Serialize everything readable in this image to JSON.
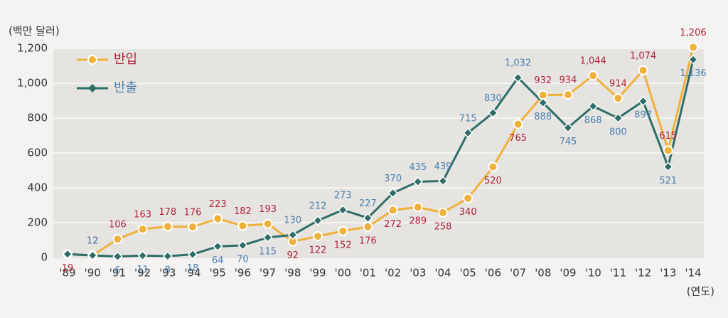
{
  "chart_data": {
    "type": "line",
    "y_axis_label": "(백만 달러)",
    "x_axis_label": "(연도)",
    "categories": [
      "'89",
      "'90",
      "'91",
      "'92",
      "'93",
      "'94",
      "'95",
      "'96",
      "'97",
      "'98",
      "'99",
      "'00",
      "'01",
      "'02",
      "'03",
      "'04",
      "'05",
      "'06",
      "'07",
      "'08",
      "'09",
      "'10",
      "'11",
      "'12",
      "'13",
      "'14"
    ],
    "series": [
      {
        "name": "반입",
        "color": "#f0b13c",
        "label_color": "#b0233c",
        "marker": "circle",
        "values": [
          19,
          12,
          106,
          163,
          178,
          176,
          223,
          182,
          193,
          92,
          122,
          152,
          176,
          272,
          289,
          258,
          340,
          520,
          765,
          932,
          934,
          1044,
          914,
          1074,
          615,
          1206
        ],
        "value_labels": [
          "19",
          "12",
          "106",
          "163",
          "178",
          "176",
          "223",
          "182",
          "193",
          "92",
          "122",
          "152",
          "176",
          "272",
          "289",
          "258",
          "340",
          "520",
          "765",
          "932",
          "934",
          "1,044",
          "914",
          "1,074",
          "615",
          "1,206"
        ]
      },
      {
        "name": "반출",
        "color": "#2e6e68",
        "label_color": "#4a7fb0",
        "marker": "diamond",
        "values": [
          20,
          12,
          6,
          11,
          8,
          18,
          64,
          70,
          115,
          130,
          212,
          273,
          227,
          370,
          435,
          439,
          715,
          830,
          1032,
          888,
          745,
          868,
          800,
          897,
          521,
          1136
        ],
        "value_labels": [
          null,
          "12",
          "6",
          "11",
          "8",
          "18",
          "64",
          "70",
          "115",
          "130",
          "212",
          "273",
          "227",
          "370",
          "435",
          "439",
          "715",
          "830",
          "1,032",
          "888",
          "745",
          "868",
          "800",
          "897",
          "521",
          "1,136"
        ]
      }
    ],
    "ylim": [
      0,
      1200
    ],
    "yticks": [
      0,
      200,
      400,
      600,
      800,
      {
        "value": 1000,
        "label": "1,000"
      },
      {
        "value": 1200,
        "label": "1,200"
      }
    ],
    "grid": true,
    "legend": "top-left"
  }
}
